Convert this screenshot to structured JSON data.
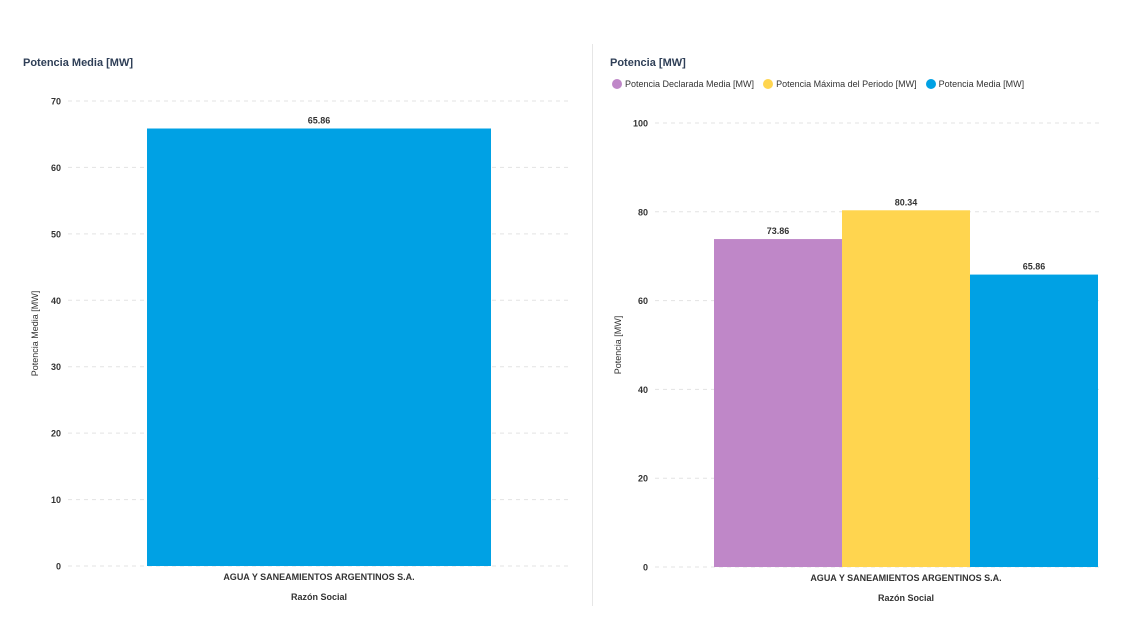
{
  "chart_data": [
    {
      "type": "bar",
      "title": "Potencia Media [MW]",
      "categories": [
        "AGUA Y SANEAMIENTOS ARGENTINOS S.A."
      ],
      "series": [
        {
          "name": "Potencia Media [MW]",
          "values": [
            65.86
          ],
          "color": "#00a1e4"
        }
      ],
      "data_labels": [
        "65.86"
      ],
      "xlabel": "Razón Social",
      "ylabel": "Potencia Media [MW]",
      "ylim": [
        0,
        70
      ],
      "yticks": [
        0,
        10,
        20,
        30,
        40,
        50,
        60,
        70
      ],
      "ytick_labels": [
        "0",
        "10",
        "20",
        "30",
        "40",
        "50",
        "60",
        "70"
      ],
      "grid": true,
      "legend": "none"
    },
    {
      "type": "bar",
      "title": "Potencia [MW]",
      "categories": [
        "AGUA Y SANEAMIENTOS ARGENTINOS S.A."
      ],
      "series": [
        {
          "name": "Potencia Declarada Media [MW]",
          "values": [
            73.86
          ],
          "color": "#bf87c8"
        },
        {
          "name": "Potencia Máxima del Periodo [MW]",
          "values": [
            80.34
          ],
          "color": "#ffd54f"
        },
        {
          "name": "Potencia Media [MW]",
          "values": [
            65.86
          ],
          "color": "#00a1e4"
        }
      ],
      "data_labels": [
        "73.86",
        "80.34",
        "65.86"
      ],
      "xlabel": "Razón Social",
      "ylabel": "Potencia [MW]",
      "ylim": [
        0,
        100
      ],
      "yticks": [
        0,
        20,
        40,
        60,
        80,
        100
      ],
      "ytick_labels": [
        "0",
        "20",
        "40",
        "60",
        "80",
        "100"
      ],
      "grid": true,
      "legend": "top-left"
    }
  ]
}
